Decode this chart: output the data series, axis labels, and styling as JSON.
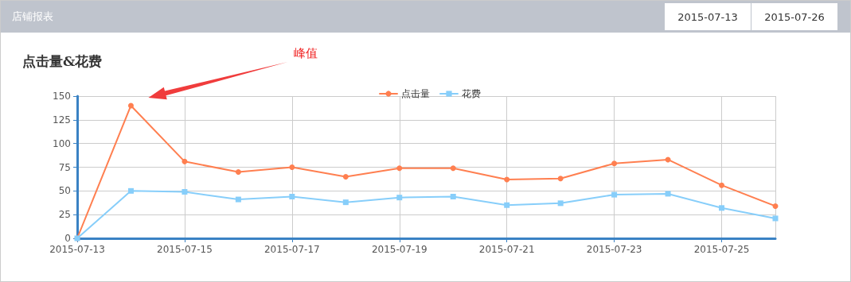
{
  "chart_data": {
    "type": "line",
    "title": "点击量&花费",
    "annotations": [
      "店铺报表",
      "2015-07-13",
      "2015-07-26",
      "峰值"
    ],
    "categories": [
      "2015-07-13",
      null,
      "2015-07-15",
      null,
      "2015-07-17",
      null,
      "2015-07-19",
      null,
      "2015-07-21",
      null,
      "2015-07-23",
      null,
      "2015-07-25",
      null
    ],
    "series": [
      {
        "name": "点击量",
        "color": "#ff7f50",
        "marker": "circle",
        "values": [
          0,
          140,
          81,
          70,
          75,
          65,
          74,
          74,
          62,
          63,
          79,
          83,
          56,
          34
        ]
      },
      {
        "name": "花费",
        "color": "#87cefa",
        "marker": "square",
        "values": [
          0,
          50,
          49,
          41,
          44,
          38,
          43,
          44,
          35,
          37,
          46,
          47,
          32,
          21
        ]
      }
    ],
    "ylim": [
      0,
      150
    ],
    "yticks": [
      0,
      25,
      50,
      75,
      100,
      125,
      150
    ],
    "grid": true,
    "legend": "top",
    "line_style": "solid"
  }
}
